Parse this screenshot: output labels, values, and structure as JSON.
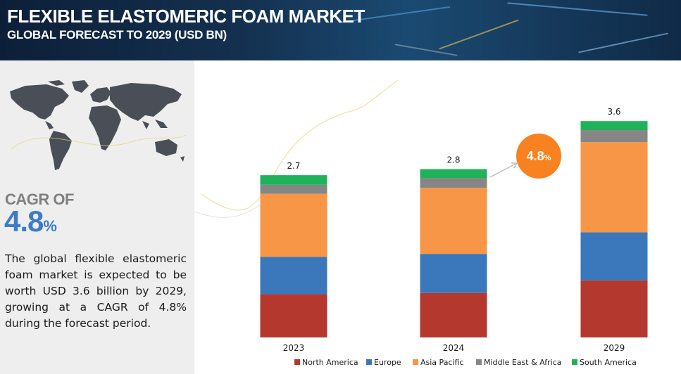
{
  "header": {
    "title": "FLEXIBLE ELASTOMERIC FOAM MARKET",
    "subtitle": "GLOBAL FORECAST TO 2029 (USD BN)"
  },
  "sidebar": {
    "cagr_label": "CAGR OF",
    "cagr_value": "4.8",
    "cagr_unit": "%",
    "description": "The global flexible elastomeric foam market is expected to be worth USD 3.6 billion by 2029, growing at a CAGR of 4.8% during the forecast period."
  },
  "callout": {
    "value": "4.8",
    "unit": "%"
  },
  "colors": {
    "North America": "#b5382f",
    "Europe": "#3a78bb",
    "Asia Pacific": "#f79646",
    "Middle East & Africa": "#868686",
    "South America": "#1fb25a"
  },
  "chart_data": {
    "type": "bar",
    "stacked": true,
    "categories": [
      "2023",
      "2024",
      "2029"
    ],
    "totals": [
      "2.7",
      "2.8",
      "3.6"
    ],
    "series": [
      {
        "name": "North America",
        "values": [
          0.72,
          0.74,
          0.95
        ]
      },
      {
        "name": "Europe",
        "values": [
          0.62,
          0.65,
          0.8
        ]
      },
      {
        "name": "Asia Pacific",
        "values": [
          1.05,
          1.1,
          1.5
        ]
      },
      {
        "name": "Middle East & Africa",
        "values": [
          0.15,
          0.16,
          0.2
        ]
      },
      {
        "name": "South America",
        "values": [
          0.16,
          0.15,
          0.15
        ]
      }
    ],
    "legend_position": "bottom",
    "grid": false
  }
}
